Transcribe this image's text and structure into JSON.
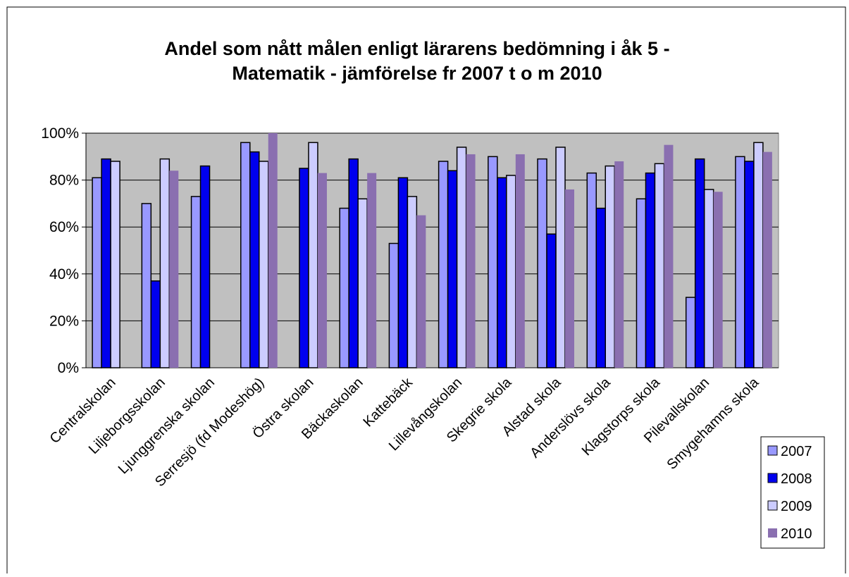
{
  "chart_data": {
    "type": "bar",
    "title": [
      "Andel som nått målen enligt lärarens bedömning i åk 5 -",
      "Matematik - jämförelse fr 2007 t o m 2010"
    ],
    "categories": [
      "Centralskolan",
      "Liljeborgsskolan",
      "Ljunggrenska skolan",
      "Serresjö (fd Modeshög)",
      "Östra skolan",
      "Bäckaskolan",
      "Kattebäck",
      "Lillevångskolan",
      "Skegrie skola",
      "Alstad skola",
      "Anderslövs skola",
      "Klagstorps skola",
      "Pilevallskolan",
      "Smygehamns skola"
    ],
    "series": [
      {
        "name": "2007",
        "color": "#9999ff",
        "values": [
          81,
          70,
          73,
          96,
          null,
          68,
          53,
          88,
          90,
          89,
          83,
          72,
          30,
          90
        ]
      },
      {
        "name": "2008",
        "color": "#0000ee",
        "values": [
          89,
          37,
          86,
          92,
          85,
          89,
          81,
          84,
          81,
          57,
          68,
          83,
          89,
          88
        ]
      },
      {
        "name": "2009",
        "color": "#ccccff",
        "values": [
          88,
          89,
          null,
          88,
          96,
          72,
          73,
          94,
          82,
          94,
          86,
          87,
          76,
          96
        ]
      },
      {
        "name": "2010",
        "color": "#8a6fb0",
        "values": [
          null,
          84,
          null,
          100,
          83,
          83,
          65,
          91,
          91,
          76,
          88,
          95,
          75,
          92
        ]
      }
    ],
    "ylim": [
      0,
      100
    ],
    "yticks": [
      {
        "value": 0,
        "label": "0%"
      },
      {
        "value": 20,
        "label": "20%"
      },
      {
        "value": 40,
        "label": "40%"
      },
      {
        "value": 60,
        "label": "60%"
      },
      {
        "value": 80,
        "label": "80%"
      },
      {
        "value": 100,
        "label": "100%"
      }
    ],
    "grid": true,
    "legend": "right"
  }
}
